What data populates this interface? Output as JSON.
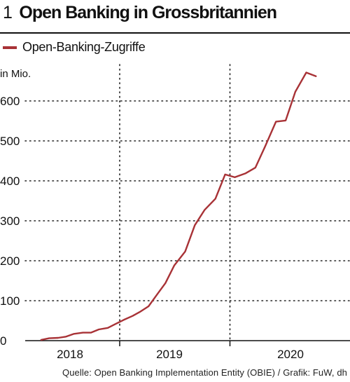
{
  "header": {
    "number": "1",
    "title": "Open Banking in Grossbritannien"
  },
  "legend": {
    "label": "Open-Banking-Zugriffe"
  },
  "source": "Quelle: Open Banking Implementation Entity (OBIE) / Grafik: FuW, dh",
  "colors": {
    "series": "#a83236",
    "text": "#111111"
  },
  "chart_data": {
    "type": "line",
    "title": "Open Banking in Grossbritannien",
    "ylabel": "in Mio.",
    "xlabel": "",
    "ylim": [
      0,
      700
    ],
    "yticks": [
      0,
      100,
      200,
      300,
      400,
      500,
      600
    ],
    "xticks": [
      {
        "label": "2018",
        "x": 2018.0
      },
      {
        "label": "2019",
        "x": 2019.0
      },
      {
        "label": "2020",
        "x": 2020.0
      }
    ],
    "year_dividers": [
      2018.5,
      2019.5
    ],
    "grid": true,
    "legend": "top-left",
    "series": [
      {
        "name": "Open-Banking-Zugriffe",
        "points": [
          {
            "x": 2017.71,
            "y": 2
          },
          {
            "x": 2017.79,
            "y": 6
          },
          {
            "x": 2017.88,
            "y": 7
          },
          {
            "x": 2017.96,
            "y": 10
          },
          {
            "x": 2018.04,
            "y": 17
          },
          {
            "x": 2018.13,
            "y": 20
          },
          {
            "x": 2018.21,
            "y": 20
          },
          {
            "x": 2018.29,
            "y": 28
          },
          {
            "x": 2018.38,
            "y": 32
          },
          {
            "x": 2018.46,
            "y": 42
          },
          {
            "x": 2018.54,
            "y": 52
          },
          {
            "x": 2018.63,
            "y": 62
          },
          {
            "x": 2018.71,
            "y": 73
          },
          {
            "x": 2018.79,
            "y": 86
          },
          {
            "x": 2018.88,
            "y": 117
          },
          {
            "x": 2018.96,
            "y": 144
          },
          {
            "x": 2019.04,
            "y": 188
          },
          {
            "x": 2019.13,
            "y": 223
          },
          {
            "x": 2019.21,
            "y": 289
          },
          {
            "x": 2019.29,
            "y": 327
          },
          {
            "x": 2019.38,
            "y": 355
          },
          {
            "x": 2019.46,
            "y": 416
          },
          {
            "x": 2019.54,
            "y": 409
          },
          {
            "x": 2019.63,
            "y": 419
          },
          {
            "x": 2019.71,
            "y": 433
          },
          {
            "x": 2019.79,
            "y": 486
          },
          {
            "x": 2019.88,
            "y": 548
          },
          {
            "x": 2019.96,
            "y": 551
          },
          {
            "x": 2020.04,
            "y": 623
          },
          {
            "x": 2020.13,
            "y": 671
          },
          {
            "x": 2020.21,
            "y": 662
          }
        ]
      }
    ]
  }
}
